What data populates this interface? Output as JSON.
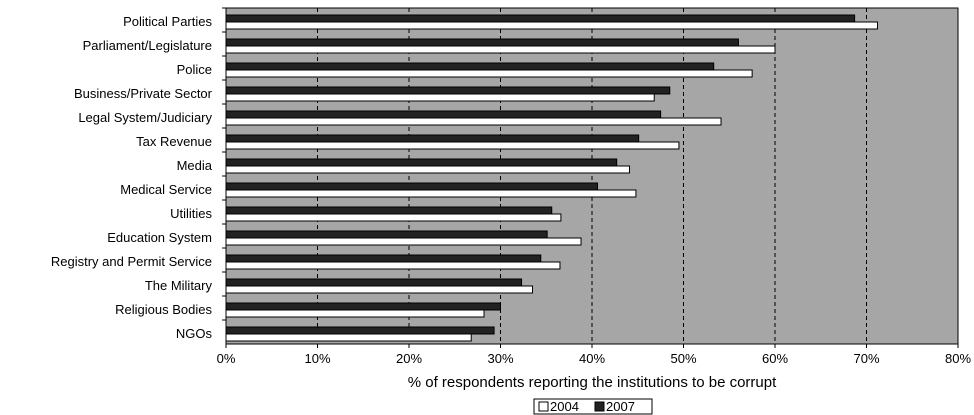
{
  "chart_data": {
    "type": "bar",
    "orientation": "horizontal",
    "title": "",
    "xlabel": "% of respondents reporting the institutions to be corrupt",
    "ylabel": "",
    "xlim": [
      0,
      80
    ],
    "x_ticks": [
      0,
      10,
      20,
      30,
      40,
      50,
      60,
      70,
      80
    ],
    "x_tick_labels": [
      "0%",
      "10%",
      "20%",
      "30%",
      "40%",
      "50%",
      "60%",
      "70%",
      "80%"
    ],
    "grid": "vertical dashed",
    "legend_position": "bottom-center",
    "categories": [
      "Political Parties",
      "Parliament/Legislature",
      "Police",
      "Business/Private Sector",
      "Legal System/Judiciary",
      "Tax Revenue",
      "Media",
      "Medical Service",
      "Utilities",
      "Education System",
      "Registry and Permit Service",
      "The Military",
      "Religious Bodies",
      "NGOs"
    ],
    "series": [
      {
        "name": "2004",
        "color": "#ffffff",
        "values": [
          71.2,
          60,
          57.5,
          46.8,
          54.1,
          49.5,
          44.1,
          44.8,
          36.6,
          38.8,
          36.5,
          33.5,
          28.2,
          26.8
        ]
      },
      {
        "name": "2007",
        "color": "#222222",
        "values": [
          68.7,
          56.0,
          53.3,
          48.5,
          47.5,
          45.1,
          42.7,
          40.6,
          35.6,
          35.1,
          34.4,
          32.3,
          30.0,
          29.3
        ]
      }
    ],
    "plot_background": "#a6a6a6"
  }
}
